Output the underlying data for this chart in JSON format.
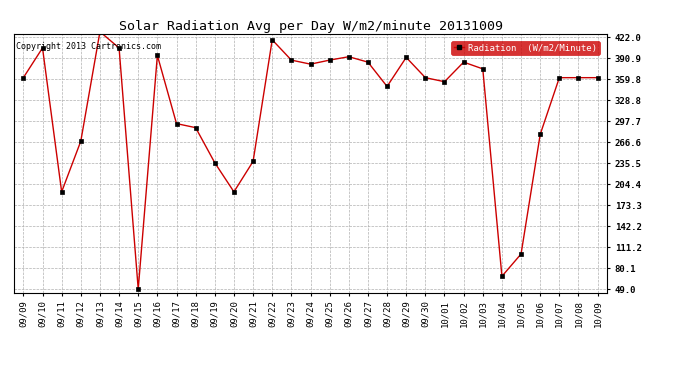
{
  "title": "Solar Radiation Avg per Day W/m2/minute 20131009",
  "copyright": "Copyright 2013 Cartronics.com",
  "legend_label": "Radiation  (W/m2/Minute)",
  "dates": [
    "09/09",
    "09/10",
    "09/11",
    "09/12",
    "09/13",
    "09/14",
    "09/15",
    "09/16",
    "09/17",
    "09/18",
    "09/19",
    "09/20",
    "09/21",
    "09/22",
    "09/23",
    "09/24",
    "09/25",
    "09/26",
    "09/27",
    "09/28",
    "09/29",
    "09/30",
    "10/01",
    "10/02",
    "10/03",
    "10/04",
    "10/05",
    "10/06",
    "10/07",
    "10/08",
    "10/09"
  ],
  "values": [
    362,
    406,
    193,
    268,
    430,
    406,
    49,
    395,
    294,
    288,
    236,
    193,
    238,
    418,
    388,
    382,
    388,
    393,
    385,
    349,
    392,
    362,
    356,
    385,
    375,
    68,
    101,
    278,
    362,
    362,
    362
  ],
  "line_color": "#cc0000",
  "marker_color": "#000000",
  "background_color": "#ffffff",
  "grid_color": "#b0b0b0",
  "yticks": [
    49.0,
    80.1,
    111.2,
    142.2,
    173.3,
    204.4,
    235.5,
    266.6,
    297.7,
    328.8,
    359.8,
    390.9,
    422.0
  ],
  "ymin": 44.0,
  "ymax": 427.0,
  "title_fontsize": 9.5,
  "tick_fontsize": 6.5,
  "copyright_fontsize": 6.0,
  "legend_fontsize": 6.5
}
